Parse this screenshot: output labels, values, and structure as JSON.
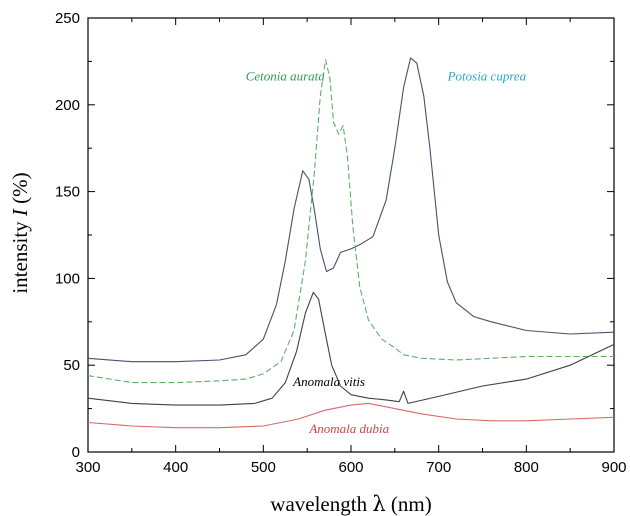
{
  "chart_data": {
    "type": "line",
    "xlabel_prefix": "wavelength ",
    "xlabel_symbol": "λ",
    "xlabel_unit": " (nm)",
    "ylabel_prefix": "intensity ",
    "ylabel_symbol": "I",
    "ylabel_unit": " (%)",
    "xlim": [
      300,
      900
    ],
    "ylim": [
      0,
      250
    ],
    "x_ticks": [
      300,
      400,
      500,
      600,
      700,
      800,
      900
    ],
    "y_ticks": [
      0,
      50,
      100,
      150,
      200,
      250
    ],
    "grid": false,
    "series": [
      {
        "name": "Potosia cuprea",
        "color": "#4a4f6e",
        "label_color": "#2aa6c8",
        "dash": "",
        "points": [
          [
            300,
            54
          ],
          [
            350,
            52
          ],
          [
            400,
            52
          ],
          [
            450,
            53
          ],
          [
            480,
            56
          ],
          [
            500,
            65
          ],
          [
            515,
            85
          ],
          [
            525,
            110
          ],
          [
            535,
            140
          ],
          [
            545,
            162
          ],
          [
            552,
            157
          ],
          [
            558,
            140
          ],
          [
            565,
            117
          ],
          [
            572,
            104
          ],
          [
            580,
            106
          ],
          [
            588,
            115
          ],
          [
            600,
            117
          ],
          [
            612,
            120
          ],
          [
            625,
            124
          ],
          [
            640,
            145
          ],
          [
            650,
            175
          ],
          [
            660,
            210
          ],
          [
            668,
            227
          ],
          [
            675,
            224
          ],
          [
            683,
            205
          ],
          [
            690,
            175
          ],
          [
            700,
            125
          ],
          [
            710,
            98
          ],
          [
            720,
            86
          ],
          [
            740,
            78
          ],
          [
            760,
            75
          ],
          [
            800,
            70
          ],
          [
            850,
            68
          ],
          [
            900,
            69
          ]
        ]
      },
      {
        "name": "Cetonia aurata",
        "color": "#5fae68",
        "label_color": "#2e9a54",
        "dash": "6,3",
        "points": [
          [
            300,
            44
          ],
          [
            350,
            40
          ],
          [
            400,
            40
          ],
          [
            450,
            41
          ],
          [
            480,
            42
          ],
          [
            500,
            45
          ],
          [
            520,
            52
          ],
          [
            535,
            70
          ],
          [
            548,
            110
          ],
          [
            558,
            160
          ],
          [
            565,
            205
          ],
          [
            571,
            226
          ],
          [
            576,
            215
          ],
          [
            580,
            190
          ],
          [
            586,
            183
          ],
          [
            591,
            188
          ],
          [
            596,
            170
          ],
          [
            602,
            130
          ],
          [
            610,
            95
          ],
          [
            620,
            76
          ],
          [
            635,
            65
          ],
          [
            650,
            60
          ],
          [
            660,
            56
          ],
          [
            680,
            54
          ],
          [
            720,
            53
          ],
          [
            800,
            55
          ],
          [
            900,
            55
          ]
        ]
      },
      {
        "name": "Anomala vitis",
        "color": "#404040",
        "label_color": "#000000",
        "dash": "",
        "points": [
          [
            300,
            31
          ],
          [
            350,
            28
          ],
          [
            400,
            27
          ],
          [
            450,
            27
          ],
          [
            490,
            28
          ],
          [
            510,
            31
          ],
          [
            525,
            40
          ],
          [
            538,
            58
          ],
          [
            548,
            80
          ],
          [
            557,
            92
          ],
          [
            563,
            88
          ],
          [
            570,
            70
          ],
          [
            578,
            50
          ],
          [
            588,
            38
          ],
          [
            600,
            33
          ],
          [
            620,
            31
          ],
          [
            640,
            30
          ],
          [
            655,
            29
          ],
          [
            660,
            35
          ],
          [
            665,
            28
          ],
          [
            700,
            32
          ],
          [
            750,
            38
          ],
          [
            800,
            42
          ],
          [
            850,
            50
          ],
          [
            900,
            62
          ]
        ]
      },
      {
        "name": "Anomala dubia",
        "color": "#d66a6a",
        "label_color": "#cc4444",
        "dash": "",
        "points": [
          [
            300,
            17
          ],
          [
            350,
            15
          ],
          [
            400,
            14
          ],
          [
            450,
            14
          ],
          [
            500,
            15
          ],
          [
            540,
            19
          ],
          [
            570,
            24
          ],
          [
            600,
            27
          ],
          [
            620,
            28
          ],
          [
            650,
            25
          ],
          [
            680,
            22
          ],
          [
            720,
            19
          ],
          [
            760,
            18
          ],
          [
            800,
            18
          ],
          [
            850,
            19
          ],
          [
            900,
            20
          ]
        ]
      }
    ],
    "annotations": [
      {
        "text": "Cetonia aurata",
        "series": 1,
        "x": 525,
        "y": 214
      },
      {
        "text": "Potosia cuprea",
        "series": 0,
        "x": 755,
        "y": 214
      },
      {
        "text": "Anomala vitis",
        "series": 2,
        "x": 575,
        "y": 38
      },
      {
        "text": "Anomala dubia",
        "series": 3,
        "x": 598,
        "y": 11
      }
    ]
  }
}
